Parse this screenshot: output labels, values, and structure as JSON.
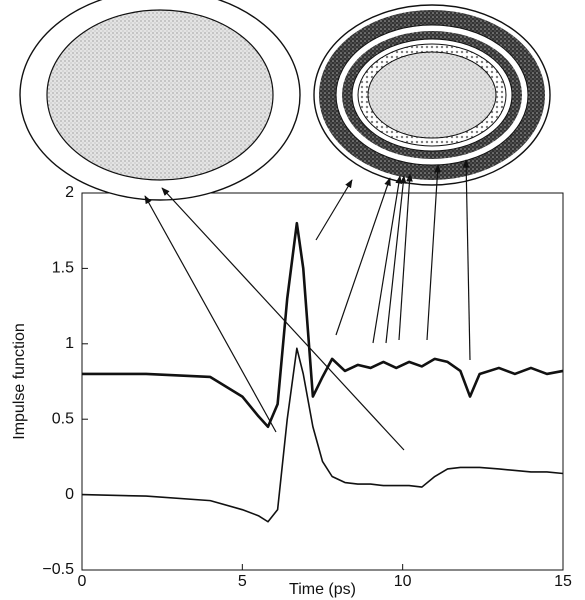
{
  "chart_data": {
    "type": "line",
    "x_label": "Time (ps)",
    "y_label": "Impulse function",
    "x": [
      0,
      2,
      4,
      5,
      5.5,
      5.8,
      6.1,
      6.4,
      6.7,
      6.9,
      7.2,
      7.5,
      7.8,
      8.2,
      8.6,
      9,
      9.4,
      9.8,
      10.2,
      10.6,
      11,
      11.4,
      11.8,
      12.1,
      12.4,
      13,
      13.5,
      14,
      14.5,
      15
    ],
    "series": [
      {
        "color": "#111111",
        "width": 2.6,
        "values": [
          0.8,
          0.8,
          0.78,
          0.65,
          0.52,
          0.45,
          0.6,
          1.3,
          1.8,
          1.5,
          0.65,
          0.78,
          0.9,
          0.82,
          0.86,
          0.84,
          0.88,
          0.84,
          0.88,
          0.85,
          0.9,
          0.88,
          0.82,
          0.65,
          0.8,
          0.84,
          0.8,
          0.84,
          0.8,
          0.82
        ]
      },
      {
        "color": "#111111",
        "width": 1.6,
        "values": [
          0,
          -0.01,
          -0.04,
          -0.1,
          -0.14,
          -0.18,
          -0.1,
          0.5,
          0.97,
          0.8,
          0.45,
          0.22,
          0.12,
          0.08,
          0.07,
          0.07,
          0.06,
          0.06,
          0.06,
          0.05,
          0.12,
          0.17,
          0.18,
          0.18,
          0.18,
          0.17,
          0.16,
          0.15,
          0.15,
          0.14
        ]
      }
    ],
    "xlim": [
      0,
      15
    ],
    "xticks": [
      0,
      5,
      10,
      15
    ],
    "ylim": [
      -0.5,
      2
    ],
    "yticks": [
      {
        "value": -0.5,
        "label": "−0.5"
      },
      0,
      0.5,
      1,
      1.5,
      2
    ]
  }
}
